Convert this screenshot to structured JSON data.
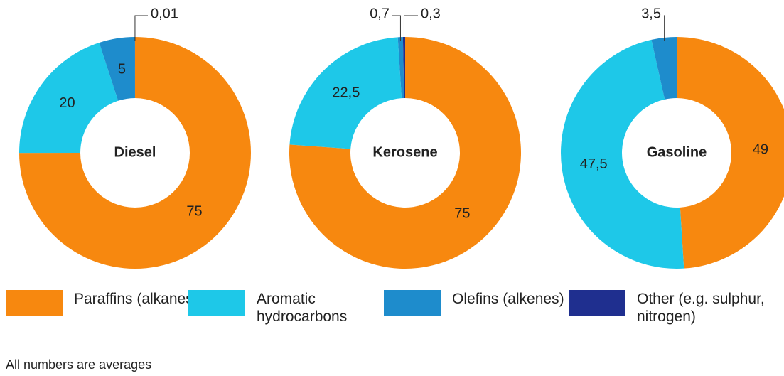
{
  "legend": {
    "categories": [
      "Paraffins (alkanes)",
      "Aromatic hydrocarbons",
      "Olefins (alkenes)",
      "Other (e.g. sulphur, nitrogen)"
    ],
    "colors": [
      "#f7880f",
      "#1ec8e8",
      "#1e8ccc",
      "#1f2f8f"
    ]
  },
  "chart_data": [
    {
      "type": "pie",
      "title": "Diesel",
      "values": [
        75,
        20,
        5,
        0.01
      ],
      "value_labels": [
        "75",
        "20",
        "5",
        "0,01"
      ]
    },
    {
      "type": "pie",
      "title": "Kerosene",
      "values": [
        75,
        22.5,
        0.7,
        0.3
      ],
      "value_labels": [
        "75",
        "22,5",
        "0,7",
        "0,3"
      ]
    },
    {
      "type": "pie",
      "title": "Gasoline",
      "values": [
        49,
        47.5,
        3.5,
        null
      ],
      "value_labels": [
        "49",
        "47,5",
        "3,5",
        null
      ]
    }
  ],
  "note": "All numbers are averages"
}
